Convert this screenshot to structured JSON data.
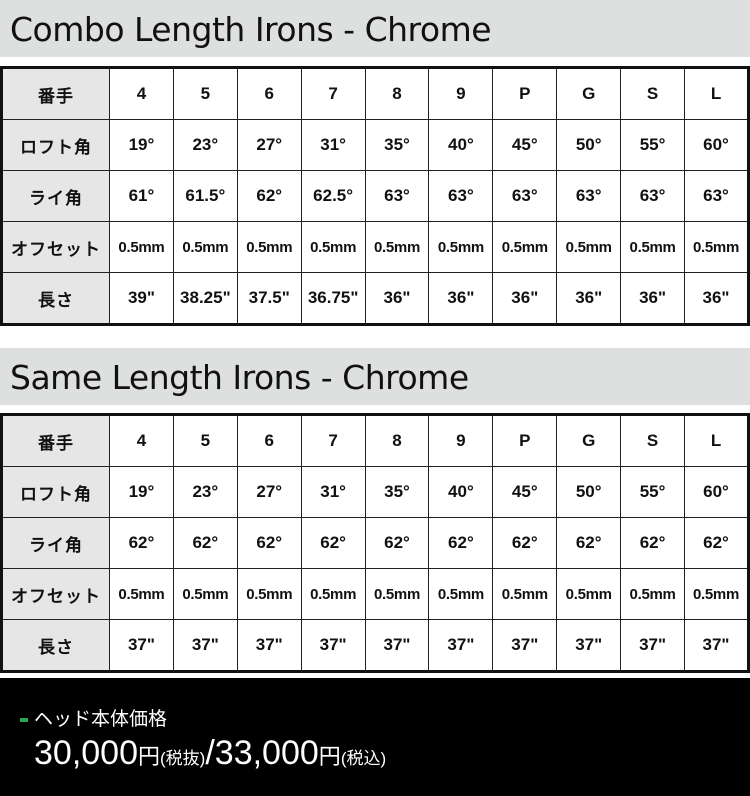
{
  "tables": [
    {
      "title": "Combo Length Irons - Chrome",
      "rows": [
        {
          "label": "番手",
          "cells": [
            "4",
            "5",
            "6",
            "7",
            "8",
            "9",
            "P",
            "G",
            "S",
            "L"
          ]
        },
        {
          "label": "ロフト角",
          "cells": [
            "19°",
            "23°",
            "27°",
            "31°",
            "35°",
            "40°",
            "45°",
            "50°",
            "55°",
            "60°"
          ]
        },
        {
          "label": "ライ角",
          "cells": [
            "61°",
            "61.5°",
            "62°",
            "62.5°",
            "63°",
            "63°",
            "63°",
            "63°",
            "63°",
            "63°"
          ]
        },
        {
          "label": "オフセット",
          "cells": [
            "0.5mm",
            "0.5mm",
            "0.5mm",
            "0.5mm",
            "0.5mm",
            "0.5mm",
            "0.5mm",
            "0.5mm",
            "0.5mm",
            "0.5mm"
          ]
        },
        {
          "label": "長さ",
          "cells": [
            "39\"",
            "38.25\"",
            "37.5\"",
            "36.75\"",
            "36\"",
            "36\"",
            "36\"",
            "36\"",
            "36\"",
            "36\""
          ]
        }
      ]
    },
    {
      "title": "Same Length Irons - Chrome",
      "rows": [
        {
          "label": "番手",
          "cells": [
            "4",
            "5",
            "6",
            "7",
            "8",
            "9",
            "P",
            "G",
            "S",
            "L"
          ]
        },
        {
          "label": "ロフト角",
          "cells": [
            "19°",
            "23°",
            "27°",
            "31°",
            "35°",
            "40°",
            "45°",
            "50°",
            "55°",
            "60°"
          ]
        },
        {
          "label": "ライ角",
          "cells": [
            "62°",
            "62°",
            "62°",
            "62°",
            "62°",
            "62°",
            "62°",
            "62°",
            "62°",
            "62°"
          ]
        },
        {
          "label": "オフセット",
          "cells": [
            "0.5mm",
            "0.5mm",
            "0.5mm",
            "0.5mm",
            "0.5mm",
            "0.5mm",
            "0.5mm",
            "0.5mm",
            "0.5mm",
            "0.5mm"
          ]
        },
        {
          "label": "長さ",
          "cells": [
            "37\"",
            "37\"",
            "37\"",
            "37\"",
            "37\"",
            "37\"",
            "37\"",
            "37\"",
            "37\"",
            "37\""
          ]
        }
      ]
    }
  ],
  "footer": {
    "label": "ヘッド本体価格",
    "price1": "30,000",
    "yen": "円",
    "tax_ex": "(税抜)",
    "slash": "/",
    "price2": "33,000",
    "tax_in": "(税込)",
    "accent": "#2aa84a"
  }
}
